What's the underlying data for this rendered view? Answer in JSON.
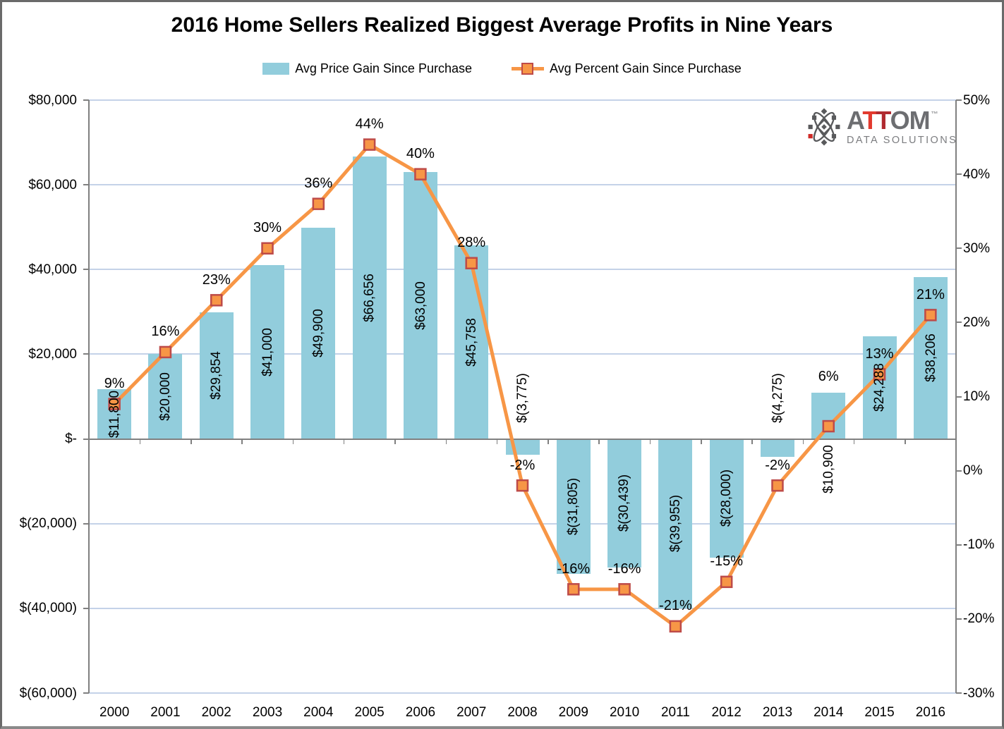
{
  "title": "2016 Home Sellers Realized Biggest Average Profits in Nine Years",
  "legend": [
    {
      "label": "Avg Price Gain Since Purchase",
      "type": "bar"
    },
    {
      "label": "Avg Percent Gain Since Purchase",
      "type": "line"
    }
  ],
  "logo": {
    "part1": "A",
    "part2": "T",
    "part3": "T",
    "part4": "OM",
    "tm": "™",
    "subtitle": "DATA SOLUTIONS"
  },
  "chart_data": {
    "type": "bar+line combo",
    "title": "2016 Home Sellers Realized Biggest Average Profits in Nine Years",
    "categories": [
      "2000",
      "2001",
      "2002",
      "2003",
      "2004",
      "2005",
      "2006",
      "2007",
      "2008",
      "2009",
      "2010",
      "2011",
      "2012",
      "2013",
      "2014",
      "2015",
      "2016"
    ],
    "series": [
      {
        "name": "Avg Price Gain Since Purchase",
        "type": "bar",
        "axis": "left",
        "values": [
          11800,
          20000,
          29854,
          41000,
          49900,
          66656,
          63000,
          45758,
          -3775,
          -31805,
          -30439,
          -39955,
          -28000,
          -4275,
          10900,
          24288,
          38206
        ],
        "labels": [
          "$11,800",
          "$20,000",
          "$29,854",
          "$41,000",
          "$49,900",
          "$66,656",
          "$63,000",
          "$45,758",
          "$(3,775)",
          "$(31,805)",
          "$(30,439)",
          "$(39,955)",
          "$(28,000)",
          "$(4,275)",
          "$10,900",
          "$24,288",
          "$38,206"
        ]
      },
      {
        "name": "Avg Percent Gain Since Purchase",
        "type": "line",
        "axis": "right",
        "values": [
          9,
          16,
          23,
          30,
          36,
          44,
          40,
          28,
          -2,
          -16,
          -16,
          -21,
          -15,
          -2,
          6,
          13,
          21
        ],
        "labels": [
          "9%",
          "16%",
          "23%",
          "30%",
          "36%",
          "44%",
          "40%",
          "28%",
          "-2%",
          "-16%",
          "-16%",
          "-21%",
          "-15%",
          "-2%",
          "6%",
          "13%",
          "21%"
        ]
      }
    ],
    "left_axis": {
      "min": -60000,
      "max": 80000,
      "ticks": [
        {
          "label": "$80,000",
          "value": 80000
        },
        {
          "label": "$60,000",
          "value": 60000
        },
        {
          "label": "$40,000",
          "value": 40000
        },
        {
          "label": "$20,000",
          "value": 20000
        },
        {
          "label": "$-",
          "value": 0
        },
        {
          "label": "$(20,000)",
          "value": -20000
        },
        {
          "label": "$(40,000)",
          "value": -40000
        },
        {
          "label": "$(60,000)",
          "value": -60000
        }
      ]
    },
    "right_axis": {
      "min": -30,
      "max": 50,
      "ticks": [
        {
          "label": "50%",
          "value": 50
        },
        {
          "label": "40%",
          "value": 40
        },
        {
          "label": "30%",
          "value": 30
        },
        {
          "label": "20%",
          "value": 20
        },
        {
          "label": "10%",
          "value": 10
        },
        {
          "label": "0%",
          "value": 0
        },
        {
          "label": "-10%",
          "value": -10
        },
        {
          "label": "-20%",
          "value": -20
        },
        {
          "label": "-30%",
          "value": -30
        }
      ]
    },
    "grid": true,
    "legend_position": "top",
    "colors": {
      "bar": "#92CDDC",
      "line": "#F79646",
      "marker_fill": "#F79646",
      "marker_border": "#BE4B48",
      "gridline": "#C4D2E8",
      "axis": "#808080",
      "text": "#000000"
    }
  }
}
